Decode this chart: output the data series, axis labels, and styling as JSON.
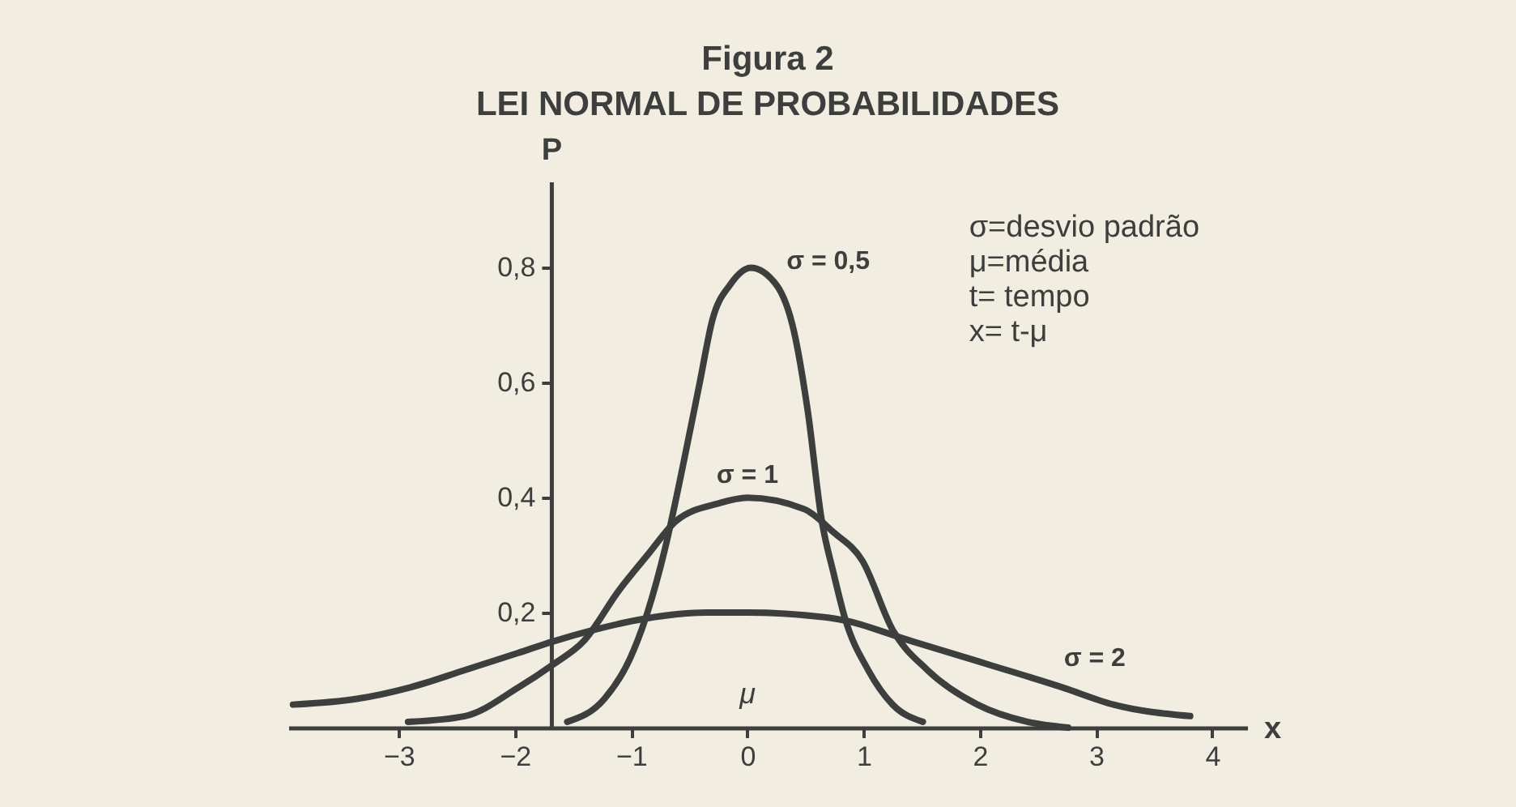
{
  "chart_data": {
    "type": "line",
    "title": "Figura 2",
    "subtitle": "LEI NORMAL DE PROBABILIDADES",
    "xlabel": "x",
    "ylabel": "P",
    "annotations": [
      "σ=desvio padrão",
      "μ=média",
      "t= tempo",
      "x= t-μ",
      "μ"
    ],
    "series": [
      {
        "name": "σ = 0,5",
        "color": "#3c3f3d",
        "x": [
          -1.55,
          -1.23,
          -1.01,
          -0.86,
          -0.71,
          -0.56,
          -0.41,
          -0.3,
          -0.15,
          0.03,
          0.25,
          0.4,
          0.52,
          0.64,
          0.74,
          0.84,
          1.04,
          1.25,
          1.51
        ],
        "values": [
          0.01,
          0.05,
          0.12,
          0.2,
          0.31,
          0.45,
          0.6,
          0.71,
          0.77,
          0.8,
          0.77,
          0.69,
          0.55,
          0.36,
          0.27,
          0.19,
          0.1,
          0.04,
          0.01
        ]
      },
      {
        "name": "σ = 1",
        "color": "#3c3f3d",
        "x": [
          -2.92,
          -2.43,
          -1.97,
          -1.67,
          -1.41,
          -1.1,
          -0.86,
          -0.61,
          -0.25,
          0,
          0.49,
          0.74,
          0.99,
          1.25,
          1.55,
          1.98,
          2.41,
          2.76
        ],
        "values": [
          0.01,
          0.02,
          0.07,
          0.11,
          0.15,
          0.24,
          0.3,
          0.36,
          0.39,
          0.4,
          0.38,
          0.34,
          0.29,
          0.17,
          0.1,
          0.04,
          0.01,
          0
        ]
      },
      {
        "name": "σ = 2",
        "color": "#3c3f3d",
        "x": [
          -3.91,
          -3.36,
          -2.9,
          -2.43,
          -1.97,
          -1.67,
          -1.32,
          -0.87,
          -0.35,
          0,
          0.74,
          1.42,
          2.07,
          2.71,
          3.15,
          3.81
        ],
        "values": [
          0.04,
          0.05,
          0.07,
          0.1,
          0.13,
          0.15,
          0.17,
          0.19,
          0.2,
          0.2,
          0.19,
          0.15,
          0.11,
          0.07,
          0.04,
          0.02
        ]
      }
    ],
    "xlim": [
      -3.95,
      4.3
    ],
    "xticks": [
      -3,
      -2,
      -1,
      0,
      1,
      2,
      3,
      4
    ],
    "ylim": [
      0,
      0.95
    ],
    "yticks": [
      {
        "value": 0.2,
        "label": "0,2"
      },
      {
        "value": 0.4,
        "label": "0,4"
      },
      {
        "value": 0.6,
        "label": "0,6"
      },
      {
        "value": 0.8,
        "label": "0,8"
      }
    ],
    "grid": false,
    "legend": false,
    "marker": "none",
    "line_style": "solid"
  }
}
